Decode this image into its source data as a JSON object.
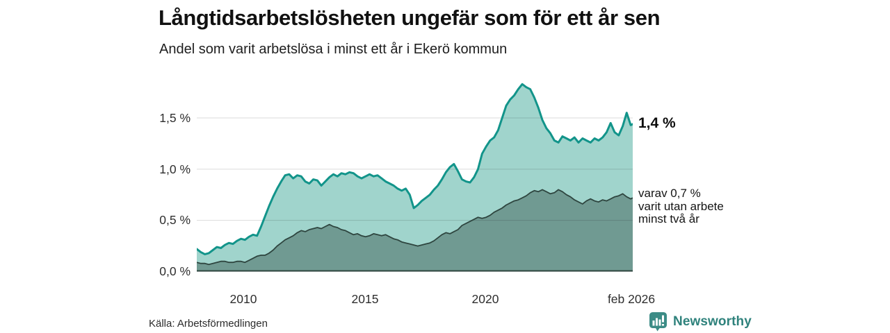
{
  "header": {
    "title": "Långtidsarbetslösheten ungefär som för ett år sen",
    "subtitle": "Andel som varit arbetslösa i minst ett år i Ekerö kommun"
  },
  "chart_data": {
    "type": "area",
    "title": "Långtidsarbetslösheten ungefär som för ett år sen",
    "subtitle": "Andel som varit arbetslösa i minst ett år i Ekerö kommun",
    "unit": "%",
    "grid": true,
    "legend_position": "annotations-right",
    "x_axis": {
      "range": [
        2008.0,
        2026.0833
      ],
      "tick_labels": [
        "2010",
        "2015",
        "2020",
        "feb 2026"
      ],
      "tick_positions": [
        2010,
        2015,
        2020,
        2026.0833
      ]
    },
    "y_axis": {
      "range": [
        0,
        1.9
      ],
      "tick_labels": [
        "1,5 %",
        "1,0 %",
        "0,5 %",
        "0,0 %"
      ],
      "tick_values": [
        1.5,
        1.0,
        0.5,
        0.0
      ]
    },
    "x_start": 2008.0,
    "x_step_years": 0.1666667,
    "series": [
      {
        "name": "Andel arbetslösa minst ett år",
        "line_color": "#12948a",
        "fill_color": "#a0d4cc",
        "end_value": "1,4 %",
        "values": [
          0.22,
          0.19,
          0.17,
          0.18,
          0.21,
          0.24,
          0.23,
          0.26,
          0.28,
          0.27,
          0.3,
          0.32,
          0.31,
          0.34,
          0.36,
          0.35,
          0.44,
          0.54,
          0.64,
          0.73,
          0.81,
          0.88,
          0.94,
          0.95,
          0.91,
          0.94,
          0.93,
          0.88,
          0.86,
          0.9,
          0.89,
          0.84,
          0.88,
          0.92,
          0.95,
          0.93,
          0.96,
          0.95,
          0.97,
          0.96,
          0.93,
          0.91,
          0.93,
          0.95,
          0.93,
          0.94,
          0.91,
          0.88,
          0.86,
          0.84,
          0.81,
          0.79,
          0.81,
          0.75,
          0.62,
          0.65,
          0.69,
          0.72,
          0.75,
          0.8,
          0.84,
          0.9,
          0.97,
          1.02,
          1.05,
          0.98,
          0.9,
          0.88,
          0.87,
          0.92,
          1.0,
          1.15,
          1.22,
          1.28,
          1.31,
          1.38,
          1.5,
          1.62,
          1.68,
          1.72,
          1.78,
          1.83,
          1.8,
          1.78,
          1.7,
          1.6,
          1.48,
          1.4,
          1.35,
          1.28,
          1.26,
          1.32,
          1.3,
          1.28,
          1.31,
          1.26,
          1.3,
          1.28,
          1.26,
          1.3,
          1.28,
          1.31,
          1.36,
          1.45,
          1.36,
          1.33,
          1.42,
          1.55,
          1.43,
          1.44
        ]
      },
      {
        "name": "Andel utan arbete minst två år",
        "line_color": "#2e453f",
        "fill_color": "#709a92",
        "end_value": "0,7 %",
        "values": [
          0.09,
          0.08,
          0.08,
          0.07,
          0.08,
          0.09,
          0.1,
          0.1,
          0.09,
          0.09,
          0.1,
          0.1,
          0.09,
          0.11,
          0.13,
          0.15,
          0.16,
          0.16,
          0.18,
          0.21,
          0.25,
          0.28,
          0.31,
          0.33,
          0.35,
          0.38,
          0.4,
          0.39,
          0.41,
          0.42,
          0.43,
          0.42,
          0.44,
          0.46,
          0.44,
          0.43,
          0.41,
          0.4,
          0.38,
          0.36,
          0.37,
          0.35,
          0.34,
          0.35,
          0.37,
          0.36,
          0.35,
          0.36,
          0.34,
          0.32,
          0.31,
          0.29,
          0.28,
          0.27,
          0.26,
          0.25,
          0.26,
          0.27,
          0.28,
          0.3,
          0.33,
          0.36,
          0.38,
          0.37,
          0.39,
          0.41,
          0.45,
          0.47,
          0.49,
          0.51,
          0.53,
          0.52,
          0.53,
          0.55,
          0.58,
          0.6,
          0.62,
          0.65,
          0.67,
          0.69,
          0.7,
          0.72,
          0.74,
          0.77,
          0.79,
          0.78,
          0.8,
          0.78,
          0.76,
          0.77,
          0.8,
          0.78,
          0.75,
          0.73,
          0.7,
          0.68,
          0.66,
          0.69,
          0.71,
          0.69,
          0.68,
          0.7,
          0.69,
          0.71,
          0.73,
          0.74,
          0.76,
          0.73,
          0.71,
          0.72
        ]
      }
    ]
  },
  "annotations": {
    "series1_end_label": "1,4 %",
    "series2_end_label_lines": [
      "varav 0,7 %",
      "varit utan arbete",
      "minst två år"
    ]
  },
  "footer": {
    "source": "Källa: Arbetsförmedlingen",
    "brand_name": "Newsworthy"
  },
  "colors": {
    "line_total": "#12948a",
    "fill_total": "#a0d4cc",
    "line_subset": "#2e453f",
    "fill_subset": "#709a92",
    "grid": "#d9d9d9",
    "brand": "#2f827c"
  }
}
